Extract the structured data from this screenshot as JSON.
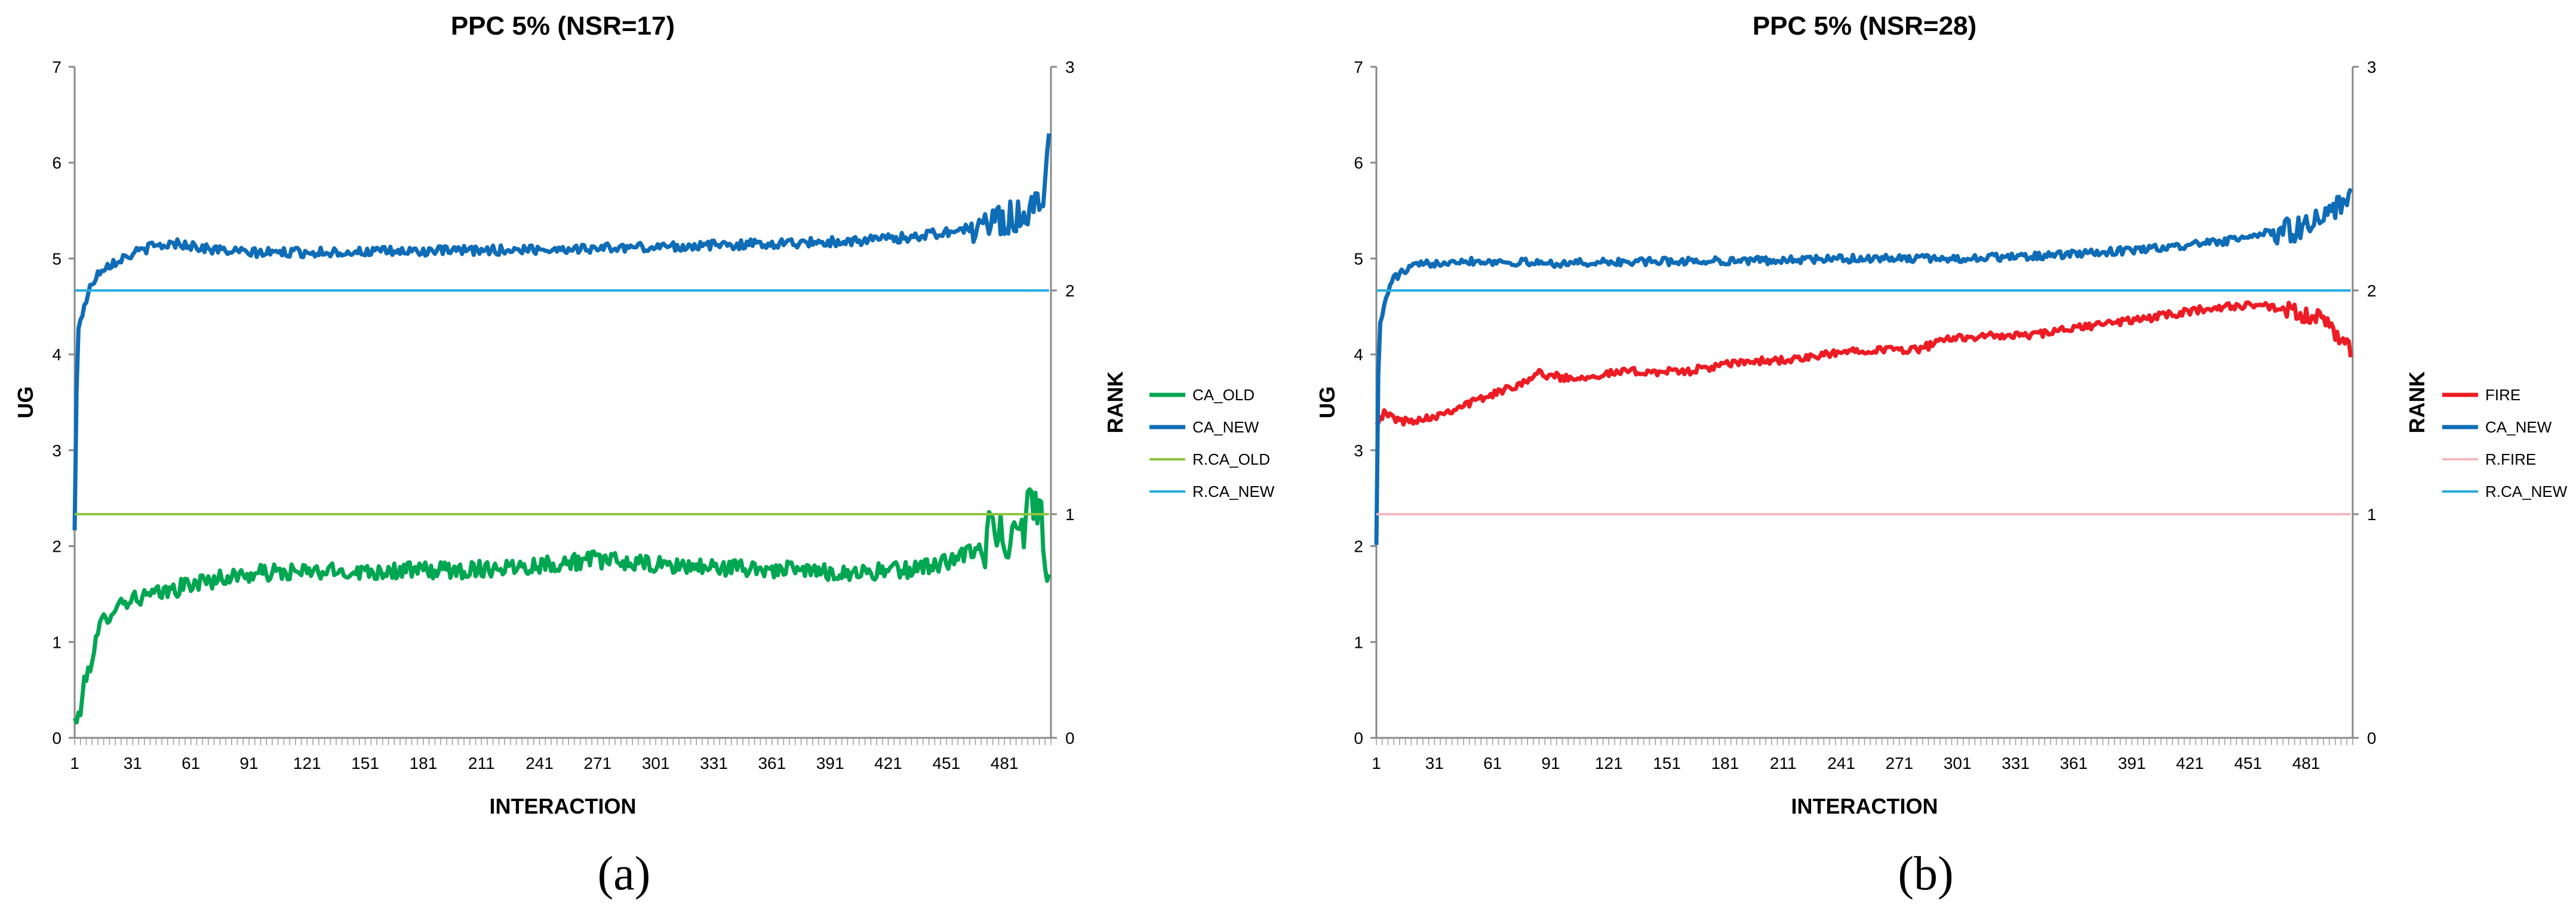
{
  "chart_data": [
    {
      "type": "line",
      "panel_label": "(a)",
      "title": "PPC 5% (NSR=17)",
      "xlabel": "INTERACTION",
      "ylabel": "UG",
      "y2label": "RANK",
      "xlim": [
        1,
        505
      ],
      "ylim": [
        0,
        7
      ],
      "y2lim": [
        0,
        3
      ],
      "y_ticks": [
        "0",
        "1",
        "2",
        "3",
        "4",
        "5",
        "6",
        "7"
      ],
      "y2_ticks": [
        "0",
        "1",
        "2",
        "3"
      ],
      "x_ticks": [
        "1",
        "31",
        "61",
        "91",
        "121",
        "151",
        "181",
        "211",
        "241",
        "271",
        "301",
        "331",
        "361",
        "391",
        "421",
        "451",
        "481"
      ],
      "legend_position": "right",
      "series": [
        {
          "name": "CA_OLD",
          "axis": "left",
          "color": "#00A651",
          "width": 7,
          "profile": [
            [
              1,
              0.18
            ],
            [
              3,
              0.2
            ],
            [
              6,
              0.55
            ],
            [
              10,
              0.85
            ],
            [
              15,
              1.2
            ],
            [
              22,
              1.38
            ],
            [
              30,
              1.45
            ],
            [
              45,
              1.5
            ],
            [
              60,
              1.6
            ],
            [
              80,
              1.68
            ],
            [
              100,
              1.72
            ],
            [
              150,
              1.74
            ],
            [
              200,
              1.75
            ],
            [
              250,
              1.82
            ],
            [
              270,
              1.86
            ],
            [
              300,
              1.8
            ],
            [
              330,
              1.78
            ],
            [
              360,
              1.76
            ],
            [
              400,
              1.72
            ],
            [
              430,
              1.75
            ],
            [
              455,
              1.85
            ],
            [
              470,
              2.0
            ],
            [
              480,
              2.15
            ],
            [
              490,
              2.3
            ],
            [
              500,
              2.5
            ],
            [
              504,
              1.6
            ]
          ],
          "noise": 0.09,
          "noise_late": 0.35,
          "late_from": 470
        },
        {
          "name": "CA_NEW",
          "axis": "left",
          "color": "#0F6CB6",
          "width": 7,
          "profile": [
            [
              1,
              2.15
            ],
            [
              2,
              3.6
            ],
            [
              3,
              4.3
            ],
            [
              6,
              4.5
            ],
            [
              10,
              4.75
            ],
            [
              15,
              4.9
            ],
            [
              25,
              5.0
            ],
            [
              40,
              5.12
            ],
            [
              55,
              5.16
            ],
            [
              70,
              5.1
            ],
            [
              90,
              5.06
            ],
            [
              150,
              5.07
            ],
            [
              200,
              5.08
            ],
            [
              250,
              5.1
            ],
            [
              300,
              5.12
            ],
            [
              350,
              5.15
            ],
            [
              400,
              5.18
            ],
            [
              430,
              5.22
            ],
            [
              460,
              5.3
            ],
            [
              480,
              5.4
            ],
            [
              495,
              5.5
            ],
            [
              500,
              5.55
            ],
            [
              504,
              6.25
            ]
          ],
          "noise": 0.05,
          "noise_late": 0.18,
          "late_from": 465
        },
        {
          "name": "R.CA_OLD",
          "axis": "right",
          "color": "#8DC63F",
          "width": 4,
          "profile": [
            [
              1,
              1
            ],
            [
              505,
              1
            ]
          ],
          "noise": 0,
          "noise_late": 0,
          "late_from": 505
        },
        {
          "name": "R.CA_NEW",
          "axis": "right",
          "color": "#29ABE2",
          "width": 4,
          "profile": [
            [
              1,
              2
            ],
            [
              505,
              2
            ]
          ],
          "noise": 0,
          "noise_late": 0,
          "late_from": 505
        }
      ]
    },
    {
      "type": "line",
      "panel_label": "(b)",
      "title": "PPC 5% (NSR=28)",
      "xlabel": "INTERACTION",
      "ylabel": "UG",
      "y2label": "RANK",
      "xlim": [
        1,
        505
      ],
      "ylim": [
        0,
        7
      ],
      "y2lim": [
        0,
        3
      ],
      "y_ticks": [
        "0",
        "1",
        "2",
        "3",
        "4",
        "5",
        "6",
        "7"
      ],
      "y2_ticks": [
        "0",
        "1",
        "2",
        "3"
      ],
      "x_ticks": [
        "1",
        "31",
        "61",
        "91",
        "121",
        "151",
        "181",
        "211",
        "241",
        "271",
        "301",
        "331",
        "361",
        "391",
        "421",
        "451",
        "481"
      ],
      "legend_position": "right",
      "series": [
        {
          "name": "FIRE",
          "axis": "left",
          "color": "#ED1C24",
          "width": 7,
          "profile": [
            [
              1,
              3.3
            ],
            [
              5,
              3.38
            ],
            [
              15,
              3.3
            ],
            [
              30,
              3.35
            ],
            [
              50,
              3.5
            ],
            [
              70,
              3.65
            ],
            [
              85,
              3.8
            ],
            [
              100,
              3.75
            ],
            [
              130,
              3.82
            ],
            [
              160,
              3.82
            ],
            [
              190,
              3.92
            ],
            [
              220,
              3.95
            ],
            [
              250,
              4.05
            ],
            [
              280,
              4.05
            ],
            [
              300,
              4.18
            ],
            [
              340,
              4.2
            ],
            [
              370,
              4.3
            ],
            [
              400,
              4.38
            ],
            [
              430,
              4.48
            ],
            [
              455,
              4.52
            ],
            [
              470,
              4.45
            ],
            [
              480,
              4.4
            ],
            [
              490,
              4.35
            ],
            [
              504,
              4.05
            ]
          ],
          "noise": 0.04,
          "noise_late": 0.1,
          "late_from": 470
        },
        {
          "name": "CA_NEW",
          "axis": "left",
          "color": "#0F6CB6",
          "width": 7,
          "profile": [
            [
              1,
              2.05
            ],
            [
              2,
              3.8
            ],
            [
              3,
              4.3
            ],
            [
              6,
              4.6
            ],
            [
              10,
              4.8
            ],
            [
              20,
              4.92
            ],
            [
              40,
              4.98
            ],
            [
              60,
              4.97
            ],
            [
              90,
              4.95
            ],
            [
              150,
              4.97
            ],
            [
              200,
              4.98
            ],
            [
              250,
              5.0
            ],
            [
              300,
              5.0
            ],
            [
              350,
              5.03
            ],
            [
              400,
              5.1
            ],
            [
              440,
              5.18
            ],
            [
              470,
              5.3
            ],
            [
              490,
              5.4
            ],
            [
              500,
              5.55
            ],
            [
              504,
              5.85
            ]
          ],
          "noise": 0.04,
          "noise_late": 0.15,
          "late_from": 465
        },
        {
          "name": "R.FIRE",
          "axis": "right",
          "color": "#F4B8C0",
          "width": 4,
          "profile": [
            [
              1,
              1
            ],
            [
              505,
              1
            ]
          ],
          "noise": 0,
          "noise_late": 0,
          "late_from": 505
        },
        {
          "name": "R.CA_NEW",
          "axis": "right",
          "color": "#29ABE2",
          "width": 4,
          "profile": [
            [
              1,
              2
            ],
            [
              505,
              2
            ]
          ],
          "noise": 0,
          "noise_late": 0,
          "late_from": 505
        }
      ]
    }
  ]
}
